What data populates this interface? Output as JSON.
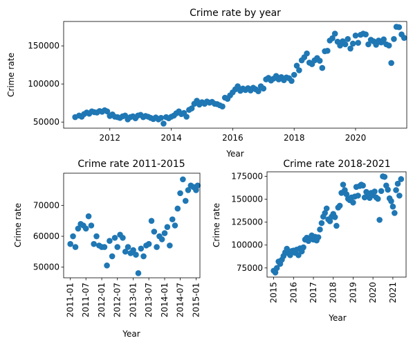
{
  "chart_data": [
    {
      "type": "scatter",
      "title": "Crime rate by year",
      "xlabel": "Year",
      "ylabel": "Crime rate",
      "xlim": [
        "2010-07-01",
        "2021-09-01"
      ],
      "ylim": [
        42000,
        182000
      ],
      "xticks": [
        "2012",
        "2014",
        "2016",
        "2018",
        "2020"
      ],
      "yticks": [
        50000,
        100000,
        150000
      ],
      "color": "#1f77b4",
      "points": [
        [
          "2010-11-15",
          56500
        ],
        [
          "2011-01-01",
          58500
        ],
        [
          "2011-02-01",
          57000
        ],
        [
          "2011-03-01",
          60500
        ],
        [
          "2011-04-01",
          62500
        ],
        [
          "2011-05-01",
          61000
        ],
        [
          "2011-06-01",
          64000
        ],
        [
          "2011-07-01",
          63000
        ],
        [
          "2011-08-01",
          62500
        ],
        [
          "2011-09-01",
          64500
        ],
        [
          "2011-10-01",
          63500
        ],
        [
          "2011-11-01",
          65500
        ],
        [
          "2011-12-01",
          64000
        ],
        [
          "2012-01-01",
          58000
        ],
        [
          "2012-02-01",
          60000
        ],
        [
          "2012-03-01",
          57000
        ],
        [
          "2012-04-01",
          56500
        ],
        [
          "2012-05-01",
          55500
        ],
        [
          "2012-06-01",
          57500
        ],
        [
          "2012-07-01",
          58500
        ],
        [
          "2012-08-01",
          53500
        ],
        [
          "2012-09-01",
          56500
        ],
        [
          "2012-10-01",
          57500
        ],
        [
          "2012-11-01",
          55000
        ],
        [
          "2012-12-01",
          58500
        ],
        [
          "2013-01-01",
          59500
        ],
        [
          "2013-02-01",
          56500
        ],
        [
          "2013-03-01",
          58000
        ],
        [
          "2013-04-01",
          57000
        ],
        [
          "2013-05-01",
          55500
        ],
        [
          "2013-06-01",
          54000
        ],
        [
          "2013-07-01",
          56000
        ],
        [
          "2013-08-01",
          53500
        ],
        [
          "2013-09-01",
          55500
        ],
        [
          "2013-10-01",
          48000
        ],
        [
          "2013-11-01",
          56500
        ],
        [
          "2013-12-01",
          55000
        ],
        [
          "2014-01-01",
          57000
        ],
        [
          "2014-02-01",
          58500
        ],
        [
          "2014-03-01",
          61500
        ],
        [
          "2014-04-01",
          64000
        ],
        [
          "2014-05-01",
          60500
        ],
        [
          "2014-06-01",
          62000
        ],
        [
          "2014-07-01",
          57000
        ],
        [
          "2014-08-01",
          66000
        ],
        [
          "2014-09-01",
          68000
        ],
        [
          "2014-10-01",
          74000
        ],
        [
          "2014-11-01",
          78000
        ],
        [
          "2014-12-01",
          73000
        ],
        [
          "2015-01-01",
          76000
        ],
        [
          "2015-02-01",
          74000
        ],
        [
          "2015-03-01",
          77000
        ],
        [
          "2015-04-01",
          75500
        ],
        [
          "2015-05-01",
          76500
        ],
        [
          "2015-06-01",
          74000
        ],
        [
          "2015-07-01",
          73500
        ],
        [
          "2015-08-01",
          72000
        ],
        [
          "2015-09-01",
          70500
        ],
        [
          "2015-10-01",
          82000
        ],
        [
          "2015-11-01",
          80500
        ],
        [
          "2015-12-01",
          85000
        ],
        [
          "2016-01-01",
          89000
        ],
        [
          "2016-02-01",
          93000
        ],
        [
          "2016-03-01",
          97000
        ],
        [
          "2016-04-01",
          91000
        ],
        [
          "2016-05-01",
          94000
        ],
        [
          "2016-06-01",
          92000
        ],
        [
          "2016-07-01",
          94500
        ],
        [
          "2016-08-01",
          91500
        ],
        [
          "2016-09-01",
          95000
        ],
        [
          "2016-10-01",
          93000
        ],
        [
          "2016-11-01",
          90500
        ],
        [
          "2016-12-01",
          97000
        ],
        [
          "2017-01-01",
          94000
        ],
        [
          "2017-02-01",
          106000
        ],
        [
          "2017-03-01",
          108000
        ],
        [
          "2017-04-01",
          104500
        ],
        [
          "2017-05-01",
          107000
        ],
        [
          "2017-06-01",
          110500
        ],
        [
          "2017-07-01",
          106000
        ],
        [
          "2017-08-01",
          109000
        ],
        [
          "2017-09-01",
          105000
        ],
        [
          "2017-10-01",
          108500
        ],
        [
          "2017-11-01",
          107500
        ],
        [
          "2017-12-01",
          104000
        ],
        [
          "2018-01-01",
          112000
        ],
        [
          "2018-02-01",
          124000
        ],
        [
          "2018-03-01",
          118000
        ],
        [
          "2018-04-01",
          131000
        ],
        [
          "2018-05-01",
          135000
        ],
        [
          "2018-06-01",
          140000
        ],
        [
          "2018-07-01",
          128000
        ],
        [
          "2018-08-01",
          126000
        ],
        [
          "2018-09-01",
          131000
        ],
        [
          "2018-10-01",
          134000
        ],
        [
          "2018-11-01",
          130500
        ],
        [
          "2018-12-01",
          121000
        ],
        [
          "2019-01-01",
          143000
        ],
        [
          "2019-02-01",
          143500
        ],
        [
          "2019-03-01",
          157000
        ],
        [
          "2019-04-01",
          160000
        ],
        [
          "2019-05-01",
          166000
        ],
        [
          "2019-06-01",
          155500
        ],
        [
          "2019-07-01",
          150500
        ],
        [
          "2019-08-01",
          156000
        ],
        [
          "2019-09-01",
          152000
        ],
        [
          "2019-10-01",
          159000
        ],
        [
          "2019-11-01",
          146500
        ],
        [
          "2019-12-01",
          153000
        ],
        [
          "2020-01-01",
          163500
        ],
        [
          "2020-02-01",
          154000
        ],
        [
          "2020-03-01",
          164500
        ],
        [
          "2020-04-01",
          166000
        ],
        [
          "2020-05-01",
          165000
        ],
        [
          "2020-06-01",
          152000
        ],
        [
          "2020-07-01",
          158000
        ],
        [
          "2020-08-01",
          156000
        ],
        [
          "2020-09-01",
          151500
        ],
        [
          "2020-10-01",
          157000
        ],
        [
          "2020-11-01",
          154500
        ],
        [
          "2020-12-01",
          158500
        ],
        [
          "2021-01-01",
          152000
        ],
        [
          "2021-02-01",
          150500
        ],
        [
          "2021-03-01",
          127500
        ],
        [
          "2021-04-01",
          159000
        ],
        [
          "2021-05-01",
          175000
        ],
        [
          "2021-06-01",
          174500
        ],
        [
          "2021-07-01",
          165000
        ],
        [
          "2021-08-01",
          160500
        ]
      ]
    },
    {
      "type": "scatter",
      "title": "Crime rate 2011-2015",
      "xlabel": "Year",
      "ylabel": "Crime rate",
      "xlim": [
        "2010-10-15",
        "2015-02-15"
      ],
      "ylim": [
        46500,
        80500
      ],
      "xticks": [
        "2011-01",
        "2011-07",
        "2012-01",
        "2012-07",
        "2013-01",
        "2013-07",
        "2014-01",
        "2014-07",
        "2015-01"
      ],
      "yticks": [
        50000,
        60000,
        70000
      ],
      "color": "#1f77b4",
      "points": [
        [
          "2011-01-01",
          57500
        ],
        [
          "2011-02-01",
          60000
        ],
        [
          "2011-03-01",
          56500
        ],
        [
          "2011-04-01",
          62500
        ],
        [
          "2011-05-01",
          64000
        ],
        [
          "2011-06-01",
          63500
        ],
        [
          "2011-07-01",
          62500
        ],
        [
          "2011-08-01",
          66500
        ],
        [
          "2011-09-01",
          63500
        ],
        [
          "2011-10-01",
          57500
        ],
        [
          "2011-11-01",
          60000
        ],
        [
          "2011-12-01",
          57000
        ],
        [
          "2012-01-01",
          56500
        ],
        [
          "2012-02-01",
          56500
        ],
        [
          "2012-03-01",
          50500
        ],
        [
          "2012-04-01",
          58500
        ],
        [
          "2012-05-01",
          53500
        ],
        [
          "2012-06-01",
          59500
        ],
        [
          "2012-07-01",
          56500
        ],
        [
          "2012-08-01",
          60500
        ],
        [
          "2012-09-01",
          59500
        ],
        [
          "2012-10-01",
          55000
        ],
        [
          "2012-11-01",
          56500
        ],
        [
          "2012-12-01",
          54500
        ],
        [
          "2013-01-01",
          55500
        ],
        [
          "2013-02-01",
          54000
        ],
        [
          "2013-03-01",
          48000
        ],
        [
          "2013-04-01",
          56000
        ],
        [
          "2013-05-01",
          53500
        ],
        [
          "2013-06-01",
          57000
        ],
        [
          "2013-07-01",
          57500
        ],
        [
          "2013-08-01",
          65000
        ],
        [
          "2013-09-01",
          61500
        ],
        [
          "2013-10-01",
          56500
        ],
        [
          "2013-11-01",
          60000
        ],
        [
          "2013-12-01",
          59000
        ],
        [
          "2014-01-01",
          61000
        ],
        [
          "2014-02-01",
          63000
        ],
        [
          "2014-03-01",
          57000
        ],
        [
          "2014-04-01",
          65500
        ],
        [
          "2014-05-01",
          63500
        ],
        [
          "2014-06-01",
          69000
        ],
        [
          "2014-07-01",
          74000
        ],
        [
          "2014-08-01",
          78500
        ],
        [
          "2014-09-01",
          71500
        ],
        [
          "2014-10-01",
          75000
        ],
        [
          "2014-11-01",
          76500
        ],
        [
          "2014-12-01",
          76000
        ],
        [
          "2015-01-01",
          75000
        ],
        [
          "2015-01-20",
          76500
        ]
      ]
    },
    {
      "type": "scatter",
      "title": "Crime rate 2018-2021",
      "xlabel": "Year",
      "ylabel": "Crime rate",
      "xlim": [
        "2014-09-01",
        "2021-09-01"
      ],
      "ylim": [
        65000,
        180000
      ],
      "xticks": [
        "2015",
        "2016",
        "2017",
        "2018",
        "2019",
        "2020",
        "2021"
      ],
      "yticks": [
        75000,
        100000,
        125000,
        150000,
        175000
      ],
      "color": "#1f77b4",
      "points": [
        [
          "2015-01-01",
          72000
        ],
        [
          "2015-02-01",
          70000
        ],
        [
          "2015-03-01",
          75000
        ],
        [
          "2015-04-01",
          82000
        ],
        [
          "2015-05-01",
          79500
        ],
        [
          "2015-06-01",
          84000
        ],
        [
          "2015-07-01",
          88000
        ],
        [
          "2015-08-01",
          92000
        ],
        [
          "2015-09-01",
          96000
        ],
        [
          "2015-10-01",
          91000
        ],
        [
          "2015-11-01",
          89000
        ],
        [
          "2015-12-01",
          93500
        ],
        [
          "2016-01-01",
          94000
        ],
        [
          "2016-02-01",
          91500
        ],
        [
          "2016-03-01",
          95000
        ],
        [
          "2016-04-01",
          89000
        ],
        [
          "2016-05-01",
          96500
        ],
        [
          "2016-06-01",
          93000
        ],
        [
          "2016-07-01",
          97500
        ],
        [
          "2016-08-01",
          106000
        ],
        [
          "2016-09-01",
          108000
        ],
        [
          "2016-10-01",
          104500
        ],
        [
          "2016-11-01",
          107000
        ],
        [
          "2016-12-01",
          110500
        ],
        [
          "2017-01-01",
          106000
        ],
        [
          "2017-02-01",
          109000
        ],
        [
          "2017-03-01",
          105000
        ],
        [
          "2017-04-01",
          108500
        ],
        [
          "2017-05-01",
          117000
        ],
        [
          "2017-06-01",
          124000
        ],
        [
          "2017-07-01",
          131000
        ],
        [
          "2017-08-01",
          135000
        ],
        [
          "2017-09-01",
          140000
        ],
        [
          "2017-10-01",
          128000
        ],
        [
          "2017-11-01",
          126000
        ],
        [
          "2017-12-01",
          131000
        ],
        [
          "2018-01-01",
          134000
        ],
        [
          "2018-02-01",
          130500
        ],
        [
          "2018-03-01",
          121000
        ],
        [
          "2018-04-01",
          141000
        ],
        [
          "2018-05-01",
          143000
        ],
        [
          "2018-06-01",
          157000
        ],
        [
          "2018-07-01",
          166000
        ],
        [
          "2018-08-01",
          160000
        ],
        [
          "2018-09-01",
          155500
        ],
        [
          "2018-10-01",
          150500
        ],
        [
          "2018-11-01",
          149000
        ],
        [
          "2018-12-01",
          152000
        ],
        [
          "2019-01-01",
          146500
        ],
        [
          "2019-02-01",
          153000
        ],
        [
          "2019-03-01",
          163500
        ],
        [
          "2019-04-01",
          154000
        ],
        [
          "2019-05-01",
          164500
        ],
        [
          "2019-06-01",
          166000
        ],
        [
          "2019-07-01",
          165000
        ],
        [
          "2019-08-01",
          152000
        ],
        [
          "2019-09-01",
          158000
        ],
        [
          "2019-10-01",
          156000
        ],
        [
          "2019-11-01",
          151500
        ],
        [
          "2019-12-01",
          157000
        ],
        [
          "2020-01-01",
          154500
        ],
        [
          "2020-02-01",
          158500
        ],
        [
          "2020-03-01",
          152000
        ],
        [
          "2020-04-01",
          150500
        ],
        [
          "2020-05-01",
          127500
        ],
        [
          "2020-06-01",
          159000
        ],
        [
          "2020-07-01",
          175000
        ],
        [
          "2020-08-01",
          174500
        ],
        [
          "2020-09-01",
          165000
        ],
        [
          "2020-10-01",
          160500
        ],
        [
          "2020-11-01",
          151000
        ],
        [
          "2020-12-01",
          148000
        ],
        [
          "2021-01-01",
          142000
        ],
        [
          "2021-02-01",
          135000
        ],
        [
          "2021-03-01",
          160000
        ],
        [
          "2021-04-01",
          167000
        ],
        [
          "2021-05-01",
          154000
        ],
        [
          "2021-06-01",
          172000
        ]
      ]
    }
  ]
}
